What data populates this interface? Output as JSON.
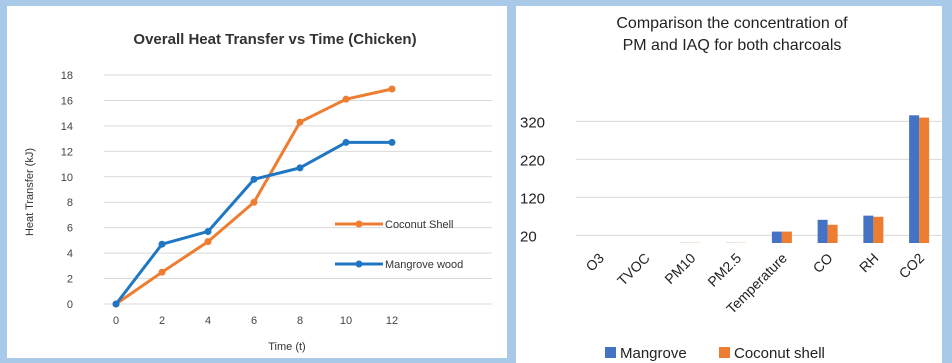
{
  "chart_data": [
    {
      "type": "line",
      "title": "Overall Heat Transfer vs Time (Chicken)",
      "xlabel": "Time (t)",
      "ylabel": "Heat Transfer (kJ)",
      "x": [
        0,
        2,
        4,
        6,
        8,
        10,
        12
      ],
      "x_ticks": [
        "0",
        "2",
        "4",
        "6",
        "8",
        "10",
        "12"
      ],
      "y_ticks": [
        "0",
        "2",
        "4",
        "6",
        "8",
        "10",
        "12",
        "14",
        "16",
        "18"
      ],
      "ylim": [
        0,
        18
      ],
      "grid": true,
      "legend_position": "right",
      "series": [
        {
          "name": "Coconut Shell",
          "color": "#ed7d31",
          "values": [
            0,
            2.5,
            4.9,
            8.0,
            14.3,
            16.1,
            16.9
          ]
        },
        {
          "name": "Mangrove wood",
          "color": "#1f77c4",
          "values": [
            0,
            4.7,
            5.7,
            9.8,
            10.7,
            12.7,
            12.7
          ]
        }
      ]
    },
    {
      "type": "bar",
      "title_lines": [
        "Comparison the concentration of",
        "PM and IAQ for both charcoals"
      ],
      "categories": [
        "O3",
        "TVOC",
        "PM10",
        "PM2.5",
        "Temperature",
        "CO",
        "RH",
        "CO2"
      ],
      "y_ticks": [
        "20",
        "120",
        "220",
        "320"
      ],
      "ylim": [
        0,
        370
      ],
      "grid": true,
      "legend_position": "bottom",
      "series": [
        {
          "name": "Mangrove",
          "color": "#4472c4",
          "values": [
            0,
            0,
            0.5,
            0.5,
            30,
            61,
            72,
            336
          ]
        },
        {
          "name": "Coconut shell",
          "color": "#ed7d31",
          "values": [
            0,
            0,
            0.5,
            0.5,
            30,
            48,
            69,
            330
          ]
        }
      ]
    }
  ]
}
